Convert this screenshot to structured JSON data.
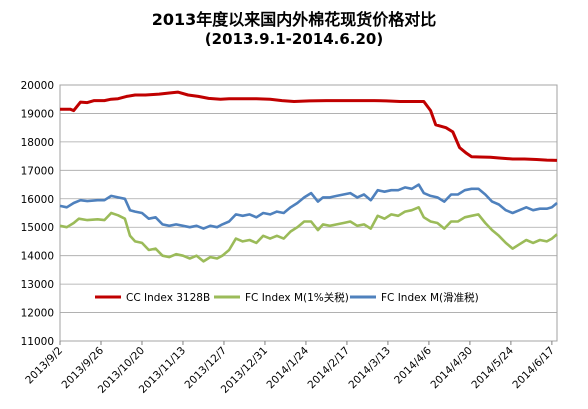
{
  "title": "2013年度以来国内外棉花现货价格对比",
  "subtitle": "(2013.9.1-2014.6.20)",
  "chart_data": {
    "type": "line",
    "ylim": [
      11000,
      20000
    ],
    "yticks": [
      11000,
      12000,
      13000,
      14000,
      15000,
      16000,
      17000,
      18000,
      19000,
      20000
    ],
    "x_range": [
      "2013/9/2",
      "2014/6/20"
    ],
    "xticks": [
      "2013/9/2",
      "2013/9/26",
      "2013/10/20",
      "2013/11/13",
      "2013/12/7",
      "2013/12/31",
      "2014/1/24",
      "2014/2/17",
      "2014/3/13",
      "2014/4/6",
      "2014/4/30",
      "2014/5/24",
      "2014/6/17"
    ],
    "legend_position": "center",
    "grid": "horizontal",
    "series": [
      {
        "name": "CC Index 3128B",
        "color": "#c00000",
        "points": [
          [
            "2013/9/2",
            19150
          ],
          [
            "2013/9/8",
            19150
          ],
          [
            "2013/9/10",
            19100
          ],
          [
            "2013/9/14",
            19400
          ],
          [
            "2013/9/18",
            19380
          ],
          [
            "2013/9/22",
            19450
          ],
          [
            "2013/9/28",
            19450
          ],
          [
            "2013/10/2",
            19500
          ],
          [
            "2013/10/6",
            19520
          ],
          [
            "2013/10/11",
            19600
          ],
          [
            "2013/10/16",
            19650
          ],
          [
            "2013/10/22",
            19650
          ],
          [
            "2013/10/30",
            19680
          ],
          [
            "2013/11/5",
            19720
          ],
          [
            "2013/11/10",
            19750
          ],
          [
            "2013/11/16",
            19650
          ],
          [
            "2013/11/22",
            19600
          ],
          [
            "2013/11/28",
            19530
          ],
          [
            "2013/12/5",
            19500
          ],
          [
            "2013/12/10",
            19520
          ],
          [
            "2013/12/18",
            19520
          ],
          [
            "2013/12/26",
            19520
          ],
          [
            "2014/1/3",
            19500
          ],
          [
            "2014/1/10",
            19450
          ],
          [
            "2014/1/17",
            19420
          ],
          [
            "2014/1/26",
            19440
          ],
          [
            "2014/2/5",
            19450
          ],
          [
            "2014/2/15",
            19450
          ],
          [
            "2014/2/25",
            19450
          ],
          [
            "2014/3/5",
            19450
          ],
          [
            "2014/3/12",
            19440
          ],
          [
            "2014/3/20",
            19420
          ],
          [
            "2014/3/28",
            19420
          ],
          [
            "2014/4/3",
            19420
          ],
          [
            "2014/4/7",
            19100
          ],
          [
            "2014/4/10",
            18600
          ],
          [
            "2014/4/16",
            18500
          ],
          [
            "2014/4/20",
            18350
          ],
          [
            "2014/4/24",
            17800
          ],
          [
            "2014/4/28",
            17600
          ],
          [
            "2014/5/1",
            17480
          ],
          [
            "2014/5/6",
            17470
          ],
          [
            "2014/5/12",
            17460
          ],
          [
            "2014/5/18",
            17430
          ],
          [
            "2014/5/25",
            17400
          ],
          [
            "2014/6/1",
            17400
          ],
          [
            "2014/6/8",
            17380
          ],
          [
            "2014/6/14",
            17360
          ],
          [
            "2014/6/20",
            17350
          ]
        ]
      },
      {
        "name": "FC Index M(1%关税)",
        "color": "#9bbb59",
        "points": [
          [
            "2013/9/2",
            15050
          ],
          [
            "2013/9/6",
            15000
          ],
          [
            "2013/9/10",
            15150
          ],
          [
            "2013/9/13",
            15300
          ],
          [
            "2013/9/18",
            15250
          ],
          [
            "2013/9/24",
            15280
          ],
          [
            "2013/9/28",
            15250
          ],
          [
            "2013/10/2",
            15500
          ],
          [
            "2013/10/6",
            15420
          ],
          [
            "2013/10/10",
            15300
          ],
          [
            "2013/10/13",
            14700
          ],
          [
            "2013/10/16",
            14500
          ],
          [
            "2013/10/20",
            14450
          ],
          [
            "2013/10/24",
            14200
          ],
          [
            "2013/10/28",
            14250
          ],
          [
            "2013/11/1",
            14000
          ],
          [
            "2013/11/5",
            13950
          ],
          [
            "2013/11/9",
            14050
          ],
          [
            "2013/11/13",
            14000
          ],
          [
            "2013/11/17",
            13900
          ],
          [
            "2013/11/21",
            14000
          ],
          [
            "2013/11/25",
            13800
          ],
          [
            "2013/11/29",
            13950
          ],
          [
            "2013/12/3",
            13900
          ],
          [
            "2013/12/6",
            14000
          ],
          [
            "2013/12/10",
            14200
          ],
          [
            "2013/12/14",
            14600
          ],
          [
            "2013/12/18",
            14500
          ],
          [
            "2013/12/22",
            14550
          ],
          [
            "2013/12/26",
            14450
          ],
          [
            "2013/12/30",
            14700
          ],
          [
            "2014/1/3",
            14600
          ],
          [
            "2014/1/7",
            14700
          ],
          [
            "2014/1/11",
            14600
          ],
          [
            "2014/1/15",
            14850
          ],
          [
            "2014/1/19",
            15000
          ],
          [
            "2014/1/23",
            15200
          ],
          [
            "2014/1/27",
            15200
          ],
          [
            "2014/1/31",
            14900
          ],
          [
            "2014/2/3",
            15100
          ],
          [
            "2014/2/7",
            15050
          ],
          [
            "2014/2/11",
            15100
          ],
          [
            "2014/2/15",
            15150
          ],
          [
            "2014/2/19",
            15200
          ],
          [
            "2014/2/23",
            15050
          ],
          [
            "2014/2/27",
            15100
          ],
          [
            "2014/3/3",
            14950
          ],
          [
            "2014/3/7",
            15400
          ],
          [
            "2014/3/11",
            15300
          ],
          [
            "2014/3/15",
            15450
          ],
          [
            "2014/3/19",
            15400
          ],
          [
            "2014/3/23",
            15550
          ],
          [
            "2014/3/27",
            15600
          ],
          [
            "2014/3/31",
            15700
          ],
          [
            "2014/4/3",
            15350
          ],
          [
            "2014/4/7",
            15200
          ],
          [
            "2014/4/11",
            15150
          ],
          [
            "2014/4/15",
            14950
          ],
          [
            "2014/4/19",
            15200
          ],
          [
            "2014/4/23",
            15200
          ],
          [
            "2014/4/27",
            15350
          ],
          [
            "2014/5/1",
            15400
          ],
          [
            "2014/5/5",
            15450
          ],
          [
            "2014/5/9",
            15150
          ],
          [
            "2014/5/13",
            14900
          ],
          [
            "2014/5/17",
            14700
          ],
          [
            "2014/5/21",
            14450
          ],
          [
            "2014/5/25",
            14250
          ],
          [
            "2014/5/29",
            14400
          ],
          [
            "2014/6/2",
            14550
          ],
          [
            "2014/6/6",
            14450
          ],
          [
            "2014/6/10",
            14550
          ],
          [
            "2014/6/14",
            14500
          ],
          [
            "2014/6/17",
            14600
          ],
          [
            "2014/6/20",
            14750
          ]
        ]
      },
      {
        "name": "FC Index M(滑准税)",
        "color": "#4f81bd",
        "points": [
          [
            "2013/9/2",
            15750
          ],
          [
            "2013/9/6",
            15700
          ],
          [
            "2013/9/10",
            15850
          ],
          [
            "2013/9/14",
            15950
          ],
          [
            "2013/9/18",
            15920
          ],
          [
            "2013/9/24",
            15950
          ],
          [
            "2013/9/28",
            15950
          ],
          [
            "2013/10/2",
            16100
          ],
          [
            "2013/10/6",
            16050
          ],
          [
            "2013/10/10",
            16000
          ],
          [
            "2013/10/13",
            15600
          ],
          [
            "2013/10/16",
            15550
          ],
          [
            "2013/10/20",
            15500
          ],
          [
            "2013/10/24",
            15300
          ],
          [
            "2013/10/28",
            15350
          ],
          [
            "2013/11/1",
            15100
          ],
          [
            "2013/11/5",
            15050
          ],
          [
            "2013/11/9",
            15100
          ],
          [
            "2013/11/13",
            15050
          ],
          [
            "2013/11/17",
            15000
          ],
          [
            "2013/11/21",
            15050
          ],
          [
            "2013/11/25",
            14950
          ],
          [
            "2013/11/29",
            15050
          ],
          [
            "2013/12/3",
            15000
          ],
          [
            "2013/12/6",
            15100
          ],
          [
            "2013/12/10",
            15200
          ],
          [
            "2013/12/14",
            15450
          ],
          [
            "2013/12/18",
            15400
          ],
          [
            "2013/12/22",
            15450
          ],
          [
            "2013/12/26",
            15350
          ],
          [
            "2013/12/30",
            15500
          ],
          [
            "2014/1/3",
            15450
          ],
          [
            "2014/1/7",
            15550
          ],
          [
            "2014/1/11",
            15500
          ],
          [
            "2014/1/15",
            15700
          ],
          [
            "2014/1/19",
            15850
          ],
          [
            "2014/1/23",
            16050
          ],
          [
            "2014/1/27",
            16200
          ],
          [
            "2014/1/31",
            15900
          ],
          [
            "2014/2/3",
            16050
          ],
          [
            "2014/2/7",
            16050
          ],
          [
            "2014/2/11",
            16100
          ],
          [
            "2014/2/15",
            16150
          ],
          [
            "2014/2/19",
            16200
          ],
          [
            "2014/2/23",
            16050
          ],
          [
            "2014/2/27",
            16150
          ],
          [
            "2014/3/3",
            15950
          ],
          [
            "2014/3/7",
            16300
          ],
          [
            "2014/3/11",
            16250
          ],
          [
            "2014/3/15",
            16300
          ],
          [
            "2014/3/19",
            16300
          ],
          [
            "2014/3/23",
            16400
          ],
          [
            "2014/3/27",
            16350
          ],
          [
            "2014/3/31",
            16500
          ],
          [
            "2014/4/3",
            16200
          ],
          [
            "2014/4/7",
            16100
          ],
          [
            "2014/4/11",
            16050
          ],
          [
            "2014/4/15",
            15900
          ],
          [
            "2014/4/19",
            16150
          ],
          [
            "2014/4/23",
            16150
          ],
          [
            "2014/4/27",
            16300
          ],
          [
            "2014/5/1",
            16350
          ],
          [
            "2014/5/5",
            16350
          ],
          [
            "2014/5/9",
            16150
          ],
          [
            "2014/5/13",
            15900
          ],
          [
            "2014/5/17",
            15800
          ],
          [
            "2014/5/21",
            15600
          ],
          [
            "2014/5/25",
            15500
          ],
          [
            "2014/5/29",
            15600
          ],
          [
            "2014/6/2",
            15700
          ],
          [
            "2014/6/6",
            15600
          ],
          [
            "2014/6/10",
            15650
          ],
          [
            "2014/6/14",
            15650
          ],
          [
            "2014/6/17",
            15700
          ],
          [
            "2014/6/20",
            15850
          ]
        ]
      }
    ]
  }
}
